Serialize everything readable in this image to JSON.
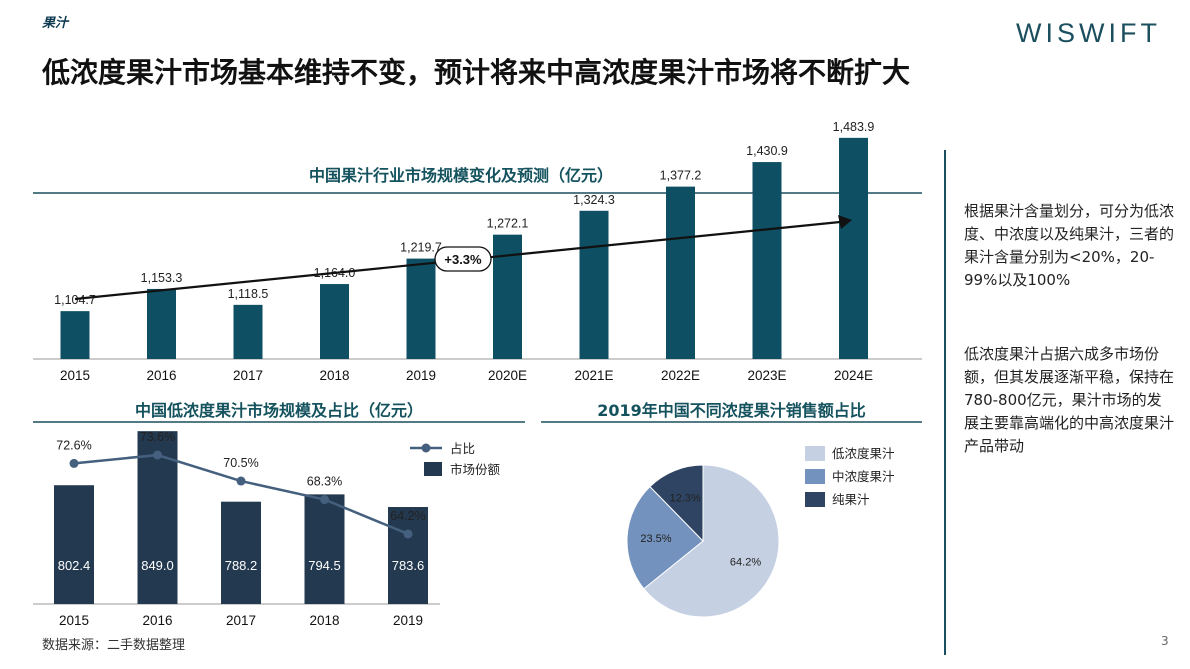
{
  "header": {
    "tag": "果汁",
    "logo": "WISWIFT",
    "title": "低浓度果汁市场基本维持不变，预计将来中高浓度果汁市场将不断扩大"
  },
  "chart_data": [
    {
      "type": "bar",
      "title": "中国果汁行业市场规模变化及预测（亿元）",
      "categories": [
        "2015",
        "2016",
        "2017",
        "2018",
        "2019",
        "2020E",
        "2021E",
        "2022E",
        "2023E",
        "2024E"
      ],
      "values": [
        1104.7,
        1153.3,
        1118.5,
        1164.0,
        1219.7,
        1272.1,
        1324.3,
        1377.2,
        1430.9,
        1483.9
      ],
      "value_labels": [
        "1,104.7",
        "1,153.3",
        "1,118.5",
        "1,164.0",
        "1,219.7",
        "1,272.1",
        "1,324.3",
        "1,377.2",
        "1,430.9",
        "1,483.9"
      ],
      "annotation": "+3.3%",
      "color": "#0e4f64"
    },
    {
      "type": "bar",
      "title": "中国低浓度果汁市场规模及占比（亿元）",
      "categories": [
        "2015",
        "2016",
        "2017",
        "2018",
        "2019"
      ],
      "series": [
        {
          "name": "市场份额",
          "type": "bar",
          "values": [
            802.4,
            849.0,
            788.2,
            794.5,
            783.6
          ],
          "color": "#23394f"
        },
        {
          "name": "占比",
          "type": "line",
          "values": [
            72.6,
            73.6,
            70.5,
            68.3,
            64.2
          ],
          "labels": [
            "72.6%",
            "73.6%",
            "70.5%",
            "68.3%",
            "64.2%"
          ],
          "color": "#44607e"
        }
      ],
      "legend": "top-right"
    },
    {
      "type": "pie",
      "title": "2019年中国不同浓度果汁销售额占比",
      "categories": [
        "低浓度果汁",
        "中浓度果汁",
        "纯果汁"
      ],
      "values": [
        64.2,
        23.5,
        12.3
      ],
      "labels": [
        "64.2%",
        "23.5%",
        "12.3%"
      ],
      "colors": [
        "#c5d0e3",
        "#7392bd",
        "#2e4462"
      ],
      "legend": "right"
    }
  ],
  "sidebar": {
    "paragraph1": "根据果汁含量划分，可分为低浓度、中浓度以及纯果汁，三者的果汁含量分别为<20%，20-99%以及100%",
    "paragraph2": "低浓度果汁占据六成多市场份额，但其发展逐渐平稳，保持在780-800亿元，果汁市场的发展主要靠高端化的中高浓度果汁产品带动"
  },
  "footer": {
    "source": "数据来源：二手数据整理",
    "page": "3"
  }
}
